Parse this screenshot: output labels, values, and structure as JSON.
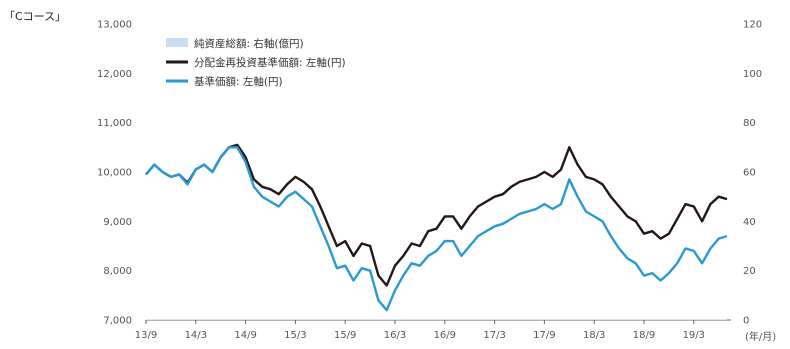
{
  "course_label": "「Cコース」",
  "axis_unit_label": "(年/月)",
  "chart_data": {
    "type": "line",
    "title": "",
    "x_unit": "(年/月)",
    "x_ticks": [
      "13/9",
      "14/3",
      "14/9",
      "15/3",
      "15/9",
      "16/3",
      "16/9",
      "17/3",
      "17/9",
      "18/3",
      "18/9",
      "19/3"
    ],
    "y_left": {
      "ticks": [
        "7,000",
        "8,000",
        "9,000",
        "10,000",
        "11,000",
        "12,000",
        "13,000"
      ],
      "range": [
        7000,
        13000
      ]
    },
    "y_right": {
      "ticks": [
        "0",
        "20",
        "40",
        "60",
        "80",
        "100",
        "120"
      ],
      "range": [
        0,
        120
      ]
    },
    "grid": false,
    "legend_position": "top-left",
    "x": [
      "13/9",
      "13/10",
      "13/11",
      "13/12",
      "14/1",
      "14/2",
      "14/3",
      "14/4",
      "14/5",
      "14/6",
      "14/7",
      "14/8",
      "14/9",
      "14/10",
      "14/11",
      "14/12",
      "15/1",
      "15/2",
      "15/3",
      "15/4",
      "15/5",
      "15/6",
      "15/7",
      "15/8",
      "15/9",
      "15/10",
      "15/11",
      "15/12",
      "16/1",
      "16/2",
      "16/3",
      "16/4",
      "16/5",
      "16/6",
      "16/7",
      "16/8",
      "16/9",
      "16/10",
      "16/11",
      "16/12",
      "17/1",
      "17/2",
      "17/3",
      "17/4",
      "17/5",
      "17/6",
      "17/7",
      "17/8",
      "17/9",
      "17/10",
      "17/11",
      "17/12",
      "18/1",
      "18/2",
      "18/3",
      "18/4",
      "18/5",
      "18/6",
      "18/7",
      "18/8",
      "18/9",
      "18/10",
      "18/11",
      "18/12",
      "19/1",
      "19/2",
      "19/3",
      "19/4",
      "19/5",
      "19/6",
      "19/7"
    ],
    "series": [
      {
        "name": "純資産総額: 右軸(億円)",
        "axis": "right",
        "color": "#c9def0",
        "style": "area",
        "values": [
          0.3,
          0.3,
          0.3,
          0.3,
          0.3,
          0.3,
          0.3,
          0.3,
          0.3,
          0.3,
          0.3,
          0.3,
          0.3,
          0.3,
          0.3,
          0.3,
          0.3,
          0.3,
          0.3,
          0.3,
          0.3,
          0.3,
          0.3,
          0.3,
          0.3,
          0.3,
          0.3,
          0.3,
          0.3,
          0.3,
          0.3,
          0.3,
          0.3,
          0.3,
          0.3,
          0.3,
          0.3,
          0.3,
          0.3,
          0.3,
          0.3,
          0.3,
          0.3,
          0.3,
          0.3,
          0.3,
          0.3,
          0.3,
          0.3,
          0.3,
          0.3,
          0.3,
          0.3,
          0.3,
          0.3,
          0.3,
          0.3,
          0.3,
          0.3,
          0.3,
          0.3,
          0.3,
          0.3,
          0.3,
          0.3,
          0.3,
          0.3,
          0.3,
          0.3,
          0.3,
          0.3
        ]
      },
      {
        "name": "分配金再投資基準価額: 左軸(円)",
        "axis": "left",
        "color": "#231815",
        "style": "line",
        "values": [
          9950,
          10150,
          10000,
          9900,
          9950,
          9780,
          10050,
          10150,
          10000,
          10300,
          10500,
          10550,
          10300,
          9850,
          9700,
          9650,
          9550,
          9750,
          9900,
          9800,
          9650,
          9300,
          8900,
          8500,
          8600,
          8300,
          8550,
          8500,
          7900,
          7700,
          8100,
          8300,
          8550,
          8500,
          8800,
          8850,
          9100,
          9100,
          8850,
          9100,
          9300,
          9400,
          9500,
          9550,
          9700,
          9800,
          9850,
          9900,
          10000,
          9900,
          10050,
          10500,
          10150,
          9900,
          9850,
          9750,
          9500,
          9300,
          9100,
          9000,
          8750,
          8800,
          8650,
          8750,
          9050,
          9350,
          9300,
          9000,
          9350,
          9500,
          9450
        ]
      },
      {
        "name": "基準価額: 左軸(円)",
        "axis": "left",
        "color": "#2999d3",
        "style": "line",
        "values": [
          9950,
          10150,
          10000,
          9900,
          9950,
          9750,
          10050,
          10150,
          10000,
          10300,
          10500,
          10500,
          10200,
          9700,
          9500,
          9400,
          9300,
          9500,
          9600,
          9450,
          9300,
          8900,
          8500,
          8050,
          8100,
          7800,
          8050,
          8000,
          7400,
          7200,
          7600,
          7900,
          8150,
          8100,
          8300,
          8400,
          8600,
          8600,
          8300,
          8500,
          8700,
          8800,
          8900,
          8950,
          9050,
          9150,
          9200,
          9250,
          9350,
          9250,
          9350,
          9850,
          9500,
          9200,
          9100,
          9000,
          8700,
          8450,
          8250,
          8150,
          7900,
          7950,
          7800,
          7950,
          8150,
          8450,
          8400,
          8150,
          8450,
          8650,
          8700
        ]
      }
    ]
  }
}
